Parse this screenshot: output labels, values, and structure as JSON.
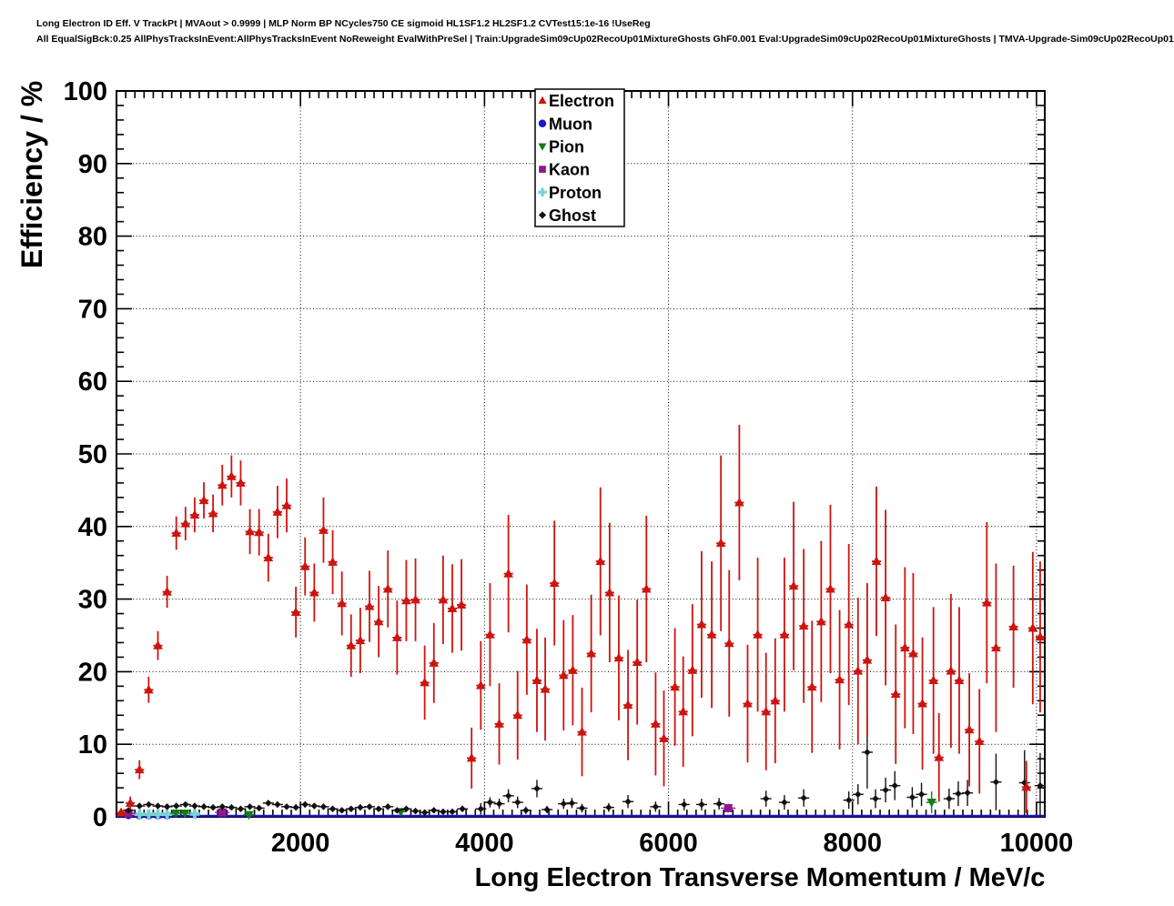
{
  "chart_data": {
    "type": "scatter",
    "title_lines": [
      "Long Electron ID Eff. V TrackPt | MVAout > 0.9999 | MLP Norm BP NCycles750 CE sigmoid HL1SF1.2 HL2SF1.2 CVTest15:1e-16 !UseReg",
      "All EqualSigBck:0.25 AllPhysTracksInEvent:AllPhysTracksInEvent NoReweight EvalWithPreSel | Train:UpgradeSim09cUp02RecoUp01MixtureGhosts GhF0.001 Eval:UpgradeSim09cUp02RecoUp01MixtureGhosts | TMVA-Upgrade-Sim09cUp02RecoUp01"
    ],
    "xlabel": "Long Electron Transverse Momentum / MeV/c",
    "ylabel": "Efficiency / %",
    "xlim": [
      0,
      10090
    ],
    "ylim": [
      0,
      100
    ],
    "x_ticks": [
      2000,
      4000,
      6000,
      8000,
      10000
    ],
    "y_ticks": [
      0,
      10,
      20,
      30,
      40,
      50,
      60,
      70,
      80,
      90,
      100
    ],
    "x_minor_step": 100,
    "y_minor_step": 2,
    "grid": "dotted",
    "legend_position": "top-center",
    "frame_color": "#000000",
    "background_color": "#ffffff",
    "series": [
      {
        "name": "Muon",
        "color": "#1c16c4",
        "marker": "circle",
        "ex": 0,
        "baseline_y": 0,
        "points": [
          [
            130,
            0.2,
            0.2
          ],
          [
            250,
            0.15,
            0.15
          ],
          [
            350,
            0.15,
            0.15
          ],
          [
            450,
            0.15,
            0.15
          ],
          [
            550,
            0.15,
            0.15
          ]
        ]
      },
      {
        "name": "Proton",
        "color": "#7ad0d6",
        "marker": "cross",
        "ex": 0,
        "points": [
          [
            250,
            0.35,
            0.2
          ],
          [
            350,
            0.35,
            0.2
          ],
          [
            450,
            0.35,
            0.2
          ],
          [
            550,
            0.35,
            0.2
          ],
          [
            850,
            0.4,
            0.2
          ]
        ]
      },
      {
        "name": "Kaon",
        "color": "#8e188e",
        "marker": "square",
        "ex": 80,
        "points": [
          [
            130,
            0.5,
            0.3
          ],
          [
            1150,
            0.6,
            0.3
          ],
          [
            6650,
            1.2,
            0.6
          ]
        ]
      },
      {
        "name": "Pion",
        "color": "#157d15",
        "marker": "triangle-down",
        "ex": 60,
        "points": [
          [
            645,
            0.5,
            0.3
          ],
          [
            745,
            0.5,
            0.3
          ],
          [
            1440,
            0.3,
            0.3
          ],
          [
            3090,
            0.7,
            0.4
          ],
          [
            8860,
            2.0,
            1.5
          ]
        ]
      },
      {
        "name": "Ghost",
        "color": "#111111",
        "marker": "diamond",
        "ex": 60,
        "points": [
          [
            130,
            0.9,
            0.4
          ],
          [
            250,
            1.5,
            0.4
          ],
          [
            350,
            1.7,
            0.4
          ],
          [
            450,
            1.5,
            0.4
          ],
          [
            550,
            1.4,
            0.4
          ],
          [
            650,
            1.5,
            0.4
          ],
          [
            750,
            1.7,
            0.4
          ],
          [
            850,
            1.5,
            0.4
          ],
          [
            950,
            1.4,
            0.4
          ],
          [
            1050,
            1.3,
            0.3
          ],
          [
            1150,
            1.4,
            0.3
          ],
          [
            1250,
            1.3,
            0.3
          ],
          [
            1350,
            1.1,
            0.3
          ],
          [
            1450,
            1.4,
            0.3
          ],
          [
            1550,
            1.2,
            0.3
          ],
          [
            1650,
            1.9,
            0.4
          ],
          [
            1750,
            1.7,
            0.4
          ],
          [
            1850,
            1.4,
            0.3
          ],
          [
            1950,
            1.3,
            0.3
          ],
          [
            2050,
            1.7,
            0.4
          ],
          [
            2150,
            1.5,
            0.4
          ],
          [
            2250,
            1.4,
            0.4
          ],
          [
            2350,
            1.1,
            0.3
          ],
          [
            2450,
            0.9,
            0.3
          ],
          [
            2550,
            1.1,
            0.3
          ],
          [
            2650,
            1.3,
            0.3
          ],
          [
            2750,
            1.4,
            0.4
          ],
          [
            2850,
            1.1,
            0.3
          ],
          [
            2950,
            1.4,
            0.4
          ],
          [
            3050,
            0.9,
            0.3
          ],
          [
            3150,
            1.1,
            0.3
          ],
          [
            3250,
            0.8,
            0.3
          ],
          [
            3350,
            0.6,
            0.3
          ],
          [
            3450,
            0.9,
            0.3
          ],
          [
            3550,
            0.7,
            0.3
          ],
          [
            3650,
            0.7,
            0.3
          ],
          [
            3760,
            1.1,
            0.4
          ],
          [
            3960,
            1.1,
            0.8
          ],
          [
            4060,
            2.0,
            0.7
          ],
          [
            4160,
            1.8,
            0.7
          ],
          [
            4260,
            2.9,
            0.9
          ],
          [
            4360,
            2.0,
            0.8
          ],
          [
            4450,
            0.9,
            0.5
          ],
          [
            4570,
            3.9,
            1.2
          ],
          [
            4680,
            1.0,
            0.5
          ],
          [
            4860,
            1.8,
            0.7
          ],
          [
            4950,
            1.9,
            0.7
          ],
          [
            5060,
            1.2,
            0.6
          ],
          [
            5350,
            1.3,
            0.6
          ],
          [
            5560,
            2.1,
            0.9
          ],
          [
            5860,
            1.4,
            0.7
          ],
          [
            6170,
            1.7,
            0.8
          ],
          [
            6360,
            1.7,
            0.8
          ],
          [
            6550,
            1.8,
            0.8
          ],
          [
            7060,
            2.5,
            1.1
          ],
          [
            7260,
            2.0,
            1.0
          ],
          [
            7470,
            2.6,
            1.2
          ],
          [
            7960,
            2.3,
            1.2
          ],
          [
            8060,
            3.1,
            1.4
          ],
          [
            8160,
            8.9,
            5.0
          ],
          [
            8250,
            2.5,
            1.3
          ],
          [
            8360,
            3.7,
            1.7
          ],
          [
            8460,
            4.3,
            2.0
          ],
          [
            8650,
            2.7,
            1.4
          ],
          [
            8750,
            3.1,
            1.6
          ],
          [
            9050,
            2.5,
            1.4
          ],
          [
            9150,
            3.2,
            1.7
          ],
          [
            9250,
            3.3,
            1.8
          ],
          [
            9560,
            4.8,
            3.9
          ],
          [
            9870,
            4.7,
            4.5
          ],
          [
            10040,
            4.3,
            4.5
          ]
        ]
      },
      {
        "name": "Electron",
        "color": "#cc1410",
        "marker": "triangle-up",
        "ex": 50,
        "points": [
          [
            50,
            0.6,
            0.5
          ],
          [
            150,
            1.9,
            0.9
          ],
          [
            250,
            6.5,
            1.3
          ],
          [
            350,
            17.5,
            1.8
          ],
          [
            450,
            23.6,
            2.0
          ],
          [
            550,
            31.0,
            2.2
          ],
          [
            650,
            39.1,
            2.3
          ],
          [
            750,
            40.4,
            2.3
          ],
          [
            850,
            41.6,
            2.4
          ],
          [
            950,
            43.6,
            2.5
          ],
          [
            1050,
            41.8,
            2.6
          ],
          [
            1150,
            45.7,
            2.8
          ],
          [
            1250,
            46.9,
            2.9
          ],
          [
            1350,
            46.0,
            3.1
          ],
          [
            1450,
            39.3,
            3.1
          ],
          [
            1550,
            39.2,
            3.2
          ],
          [
            1650,
            35.7,
            3.3
          ],
          [
            1750,
            42.0,
            3.6
          ],
          [
            1850,
            42.9,
            3.7
          ],
          [
            1950,
            28.2,
            3.5
          ],
          [
            2050,
            34.5,
            4.0
          ],
          [
            2150,
            30.9,
            4.0
          ],
          [
            2250,
            39.5,
            4.5
          ],
          [
            2350,
            35.1,
            4.4
          ],
          [
            2450,
            29.4,
            4.4
          ],
          [
            2550,
            23.6,
            4.3
          ],
          [
            2650,
            24.3,
            4.5
          ],
          [
            2750,
            29.0,
            4.9
          ],
          [
            2850,
            26.9,
            4.9
          ],
          [
            2950,
            31.4,
            5.3
          ],
          [
            3050,
            24.7,
            5.1
          ],
          [
            3150,
            29.8,
            5.6
          ],
          [
            3250,
            29.9,
            5.7
          ],
          [
            3350,
            18.5,
            5.1
          ],
          [
            3450,
            21.2,
            5.5
          ],
          [
            3550,
            29.9,
            6.1
          ],
          [
            3650,
            28.7,
            6.1
          ],
          [
            3750,
            29.2,
            6.3
          ],
          [
            3860,
            8.1,
            4.2
          ],
          [
            3960,
            18.1,
            6.1
          ],
          [
            4060,
            25.1,
            7.1
          ],
          [
            4160,
            12.8,
            5.6
          ],
          [
            4260,
            33.5,
            8.1
          ],
          [
            4360,
            14.0,
            6.1
          ],
          [
            4460,
            24.4,
            7.6
          ],
          [
            4570,
            18.8,
            7.1
          ],
          [
            4660,
            17.6,
            7.1
          ],
          [
            4760,
            32.2,
            8.6
          ],
          [
            4860,
            19.5,
            7.6
          ],
          [
            4960,
            20.2,
            7.6
          ],
          [
            5060,
            11.7,
            6.1
          ],
          [
            5160,
            22.5,
            8.1
          ],
          [
            5260,
            35.2,
            10.2
          ],
          [
            5360,
            30.9,
            9.6
          ],
          [
            5460,
            21.9,
            8.6
          ],
          [
            5560,
            15.4,
            7.6
          ],
          [
            5660,
            21.3,
            8.6
          ],
          [
            5760,
            31.4,
            10.1
          ],
          [
            5860,
            12.8,
            7.1
          ],
          [
            5950,
            10.8,
            6.6
          ],
          [
            6070,
            17.9,
            8.1
          ],
          [
            6160,
            14.5,
            7.6
          ],
          [
            6260,
            20.2,
            9.1
          ],
          [
            6360,
            26.5,
            10.1
          ],
          [
            6470,
            25.1,
            10.1
          ],
          [
            6570,
            37.7,
            12.1
          ],
          [
            6660,
            23.9,
            10.1
          ],
          [
            6770,
            43.3,
            10.7
          ],
          [
            6860,
            15.6,
            8.1
          ],
          [
            6970,
            25.1,
            10.6
          ],
          [
            7060,
            14.5,
            8.1
          ],
          [
            7160,
            16.0,
            8.6
          ],
          [
            7260,
            25.1,
            10.6
          ],
          [
            7360,
            31.8,
            11.6
          ],
          [
            7470,
            26.3,
            10.6
          ],
          [
            7560,
            17.9,
            9.1
          ],
          [
            7660,
            26.9,
            11.1
          ],
          [
            7760,
            31.4,
            11.6
          ],
          [
            7860,
            18.9,
            9.6
          ],
          [
            7960,
            26.5,
            11.1
          ],
          [
            8060,
            20.1,
            10.1
          ],
          [
            8160,
            21.6,
            10.6
          ],
          [
            8260,
            35.2,
            10.3
          ],
          [
            8360,
            30.2,
            12.1
          ],
          [
            8470,
            16.9,
            9.6
          ],
          [
            8570,
            23.3,
            11.1
          ],
          [
            8660,
            22.5,
            11.1
          ],
          [
            8760,
            15.6,
            9.1
          ],
          [
            8880,
            18.8,
            10.1
          ],
          [
            8940,
            8.2,
            6.1
          ],
          [
            9070,
            20.1,
            10.6
          ],
          [
            9160,
            18.8,
            10.1
          ],
          [
            9270,
            12.0,
            7.8
          ],
          [
            9380,
            10.4,
            7.2
          ],
          [
            9460,
            29.5,
            11.1
          ],
          [
            9560,
            23.3,
            11.6
          ],
          [
            9750,
            26.2,
            8.4
          ],
          [
            9890,
            4.1,
            3.6
          ],
          [
            9960,
            26.0,
            10.5
          ],
          [
            10040,
            24.8,
            10.4
          ]
        ]
      }
    ],
    "legend": [
      {
        "label": "Electron",
        "marker": "triangle-up",
        "color": "#cc1410"
      },
      {
        "label": "Muon",
        "marker": "circle",
        "color": "#1c16c4"
      },
      {
        "label": "Pion",
        "marker": "triangle-down",
        "color": "#157d15"
      },
      {
        "label": "Kaon",
        "marker": "square",
        "color": "#8e188e"
      },
      {
        "label": "Proton",
        "marker": "cross",
        "color": "#7ad0d6"
      },
      {
        "label": "Ghost",
        "marker": "diamond",
        "color": "#111111"
      }
    ]
  }
}
